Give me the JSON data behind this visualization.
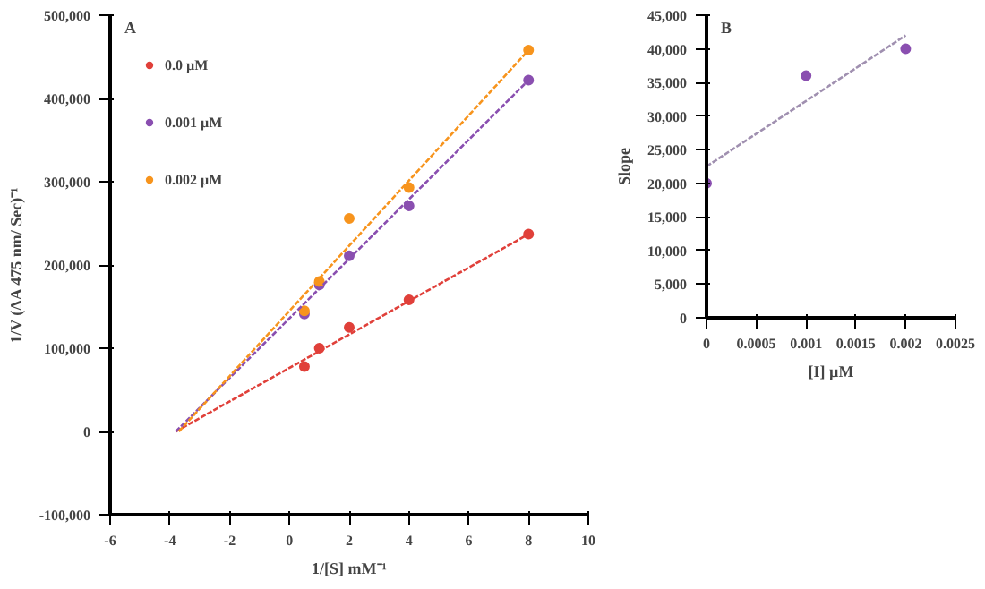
{
  "chart_data": [
    {
      "type": "scatter",
      "xlabel": "1/[S] mM⁻¹",
      "ylabel": "1/V (ΔA 475 nm/ Sec)⁻¹",
      "annotations": [
        "A"
      ],
      "xlim": [
        -6,
        10
      ],
      "xticks": [
        -6,
        -4,
        -2,
        0,
        2,
        4,
        6,
        8,
        10
      ],
      "ylim": [
        -100000,
        500000
      ],
      "yticks": [
        {
          "value": -100000,
          "label": "-100,000"
        },
        0,
        {
          "value": 100000,
          "label": "100,000"
        },
        {
          "value": 200000,
          "label": "200,000"
        },
        {
          "value": 300000,
          "label": "300,000"
        },
        {
          "value": 400000,
          "label": "400,000"
        },
        {
          "value": 500000,
          "label": "500,000"
        }
      ],
      "grid": false,
      "legend": "top left",
      "series": [
        {
          "name": "0.0 µM",
          "marker": "circle",
          "color": "#e0403a",
          "x": [
            0.5,
            1,
            2,
            4,
            8
          ],
          "values": [
            78000,
            100000,
            125000,
            158000,
            237000
          ]
        },
        {
          "name": "0.001 µM",
          "marker": "circle",
          "color": "#8a4fb0",
          "x": [
            0.5,
            1,
            2,
            4,
            8
          ],
          "values": [
            141000,
            176000,
            211000,
            271000,
            422000
          ]
        },
        {
          "name": "0.002 µM",
          "marker": "circle",
          "color": "#f7941d",
          "x": [
            0.5,
            1,
            2,
            4,
            8
          ],
          "values": [
            145000,
            180000,
            256000,
            293000,
            458000
          ]
        },
        {
          "type": "line",
          "line_style": "dotted",
          "color": "#e0403a",
          "x": [
            -3.8,
            8
          ],
          "values": [
            0,
            237000
          ]
        },
        {
          "type": "line",
          "line_style": "dotted",
          "color": "#8a4fb0",
          "x": [
            -3.8,
            8
          ],
          "values": [
            0,
            422000
          ]
        },
        {
          "type": "line",
          "line_style": "dotted",
          "color": "#f7941d",
          "x": [
            -3.7,
            8
          ],
          "values": [
            0,
            458000
          ]
        }
      ]
    },
    {
      "type": "scatter",
      "xlabel": "[I] µM",
      "ylabel": "Slope",
      "annotations": [
        "B"
      ],
      "xlim": [
        0,
        0.0025
      ],
      "xticks": [
        0,
        0.0005,
        0.001,
        0.0015,
        0.002,
        0.0025
      ],
      "ylim": [
        0,
        45000
      ],
      "yticks": [
        0,
        {
          "value": 5000,
          "label": "5,000"
        },
        {
          "value": 10000,
          "label": "10,000"
        },
        {
          "value": 15000,
          "label": "15,000"
        },
        {
          "value": 20000,
          "label": "20,000"
        },
        {
          "value": 25000,
          "label": "25,000"
        },
        {
          "value": 30000,
          "label": "30,000"
        },
        {
          "value": 35000,
          "label": "35,000"
        },
        {
          "value": 40000,
          "label": "40,000"
        },
        {
          "value": 45000,
          "label": "45,000"
        }
      ],
      "grid": false,
      "series": [
        {
          "marker": "circle",
          "color": "#8a4fb0",
          "x": [
            0,
            0.001,
            0.002
          ],
          "values": [
            20000,
            36000,
            40000
          ]
        },
        {
          "type": "line",
          "line_style": "dotted",
          "color": "#a090b0",
          "x": [
            0,
            0.002
          ],
          "values": [
            22500,
            42000
          ]
        }
      ]
    }
  ]
}
